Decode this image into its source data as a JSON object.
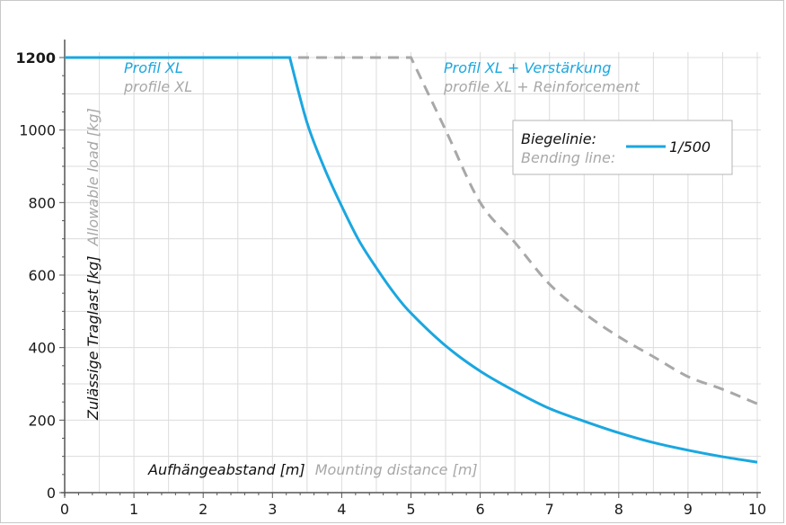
{
  "chart_data": {
    "type": "line",
    "title": "",
    "xlabel_de": "Aufhängeabstand [m]",
    "xlabel_en": "Mounting distance [m]",
    "ylabel_de": "Zulässige Traglast [kg]",
    "ylabel_en": "Allowable load [kg]",
    "xlim": [
      0,
      10
    ],
    "ylim": [
      0,
      1200
    ],
    "grid": true,
    "x_ticks": [
      "0",
      "1",
      "2",
      "3",
      "4",
      "5",
      "6",
      "7",
      "8",
      "9",
      "10"
    ],
    "y_ticks": [
      "0",
      "200",
      "400",
      "600",
      "800",
      "1000",
      "1200"
    ],
    "series": [
      {
        "name_de": "Profil XL",
        "name_en": "profile XL",
        "style": "solid",
        "color": "#1aa7e0",
        "x": [
          0,
          3.25,
          3.5,
          3.75,
          4.0,
          4.25,
          4.5,
          4.75,
          5.0,
          5.5,
          6.0,
          6.5,
          7.0,
          7.5,
          8.0,
          8.5,
          9.0,
          9.5,
          10.0
        ],
        "y": [
          1200,
          1200,
          1020,
          895,
          790,
          695,
          620,
          552,
          495,
          405,
          335,
          280,
          232,
          197,
          165,
          138,
          117,
          99,
          84
        ]
      },
      {
        "name_de": "Profil XL + Verstärkung",
        "name_en": "profile XL + Reinforcement",
        "style": "dashed",
        "color": "#a8a8a8",
        "x": [
          0,
          5.0,
          5.5,
          6.0,
          6.5,
          7.0,
          7.5,
          8.0,
          8.5,
          9.0,
          9.5,
          10.0
        ],
        "y": [
          1200,
          1200,
          1000,
          800,
          690,
          575,
          495,
          430,
          375,
          320,
          285,
          245
        ]
      }
    ],
    "legend": {
      "title_de": "Biegelinie:",
      "title_en": "Bending line:",
      "label": "1/500",
      "placement": "top-right"
    },
    "highlight_tick": "1200"
  },
  "colors": {
    "accent": "#1aa7e0",
    "secondary": "#a8a8a8",
    "grid": "#dcdcdc",
    "axis": "#555555"
  }
}
